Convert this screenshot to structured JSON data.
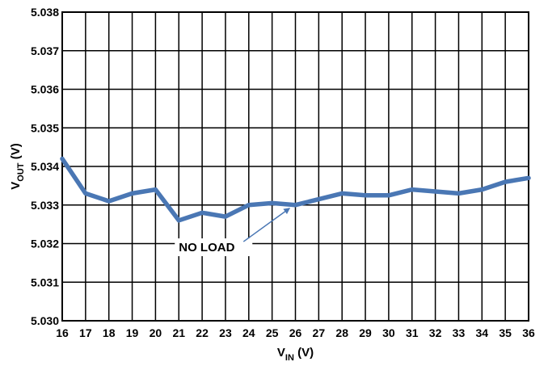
{
  "chart_data": {
    "type": "line",
    "xlabel": {
      "main": "V",
      "sub": "IN",
      "unit": " (V)"
    },
    "ylabel": {
      "main": "V",
      "sub": "OUT",
      "unit": " (V)"
    },
    "xlim": [
      16,
      36
    ],
    "ylim": [
      5.03,
      5.038
    ],
    "xticks": [
      "16",
      "17",
      "18",
      "19",
      "20",
      "21",
      "22",
      "23",
      "24",
      "25",
      "26",
      "27",
      "28",
      "29",
      "30",
      "31",
      "32",
      "33",
      "34",
      "35",
      "36"
    ],
    "yticks": [
      "5.030",
      "5.031",
      "5.032",
      "5.033",
      "5.034",
      "5.035",
      "5.036",
      "5.037",
      "5.038"
    ],
    "grid": true,
    "series": [
      {
        "color": "#4a77b4",
        "x": [
          16,
          17,
          18,
          19,
          20,
          21,
          22,
          23,
          24,
          25,
          26,
          27,
          28,
          29,
          30,
          31,
          32,
          33,
          34,
          35,
          36
        ],
        "y": [
          5.0342,
          5.0333,
          5.0331,
          5.0333,
          5.0334,
          5.0326,
          5.0328,
          5.0327,
          5.033,
          5.03305,
          5.033,
          5.03315,
          5.0333,
          5.03325,
          5.03325,
          5.0334,
          5.03335,
          5.0333,
          5.0334,
          5.0336,
          5.0337
        ]
      }
    ],
    "annotation": {
      "text": "NO LOAD",
      "arrow_to": {
        "x": 25.75,
        "y": 5.033
      },
      "text_at": {
        "x": 21.0,
        "y": 5.0318
      }
    }
  }
}
